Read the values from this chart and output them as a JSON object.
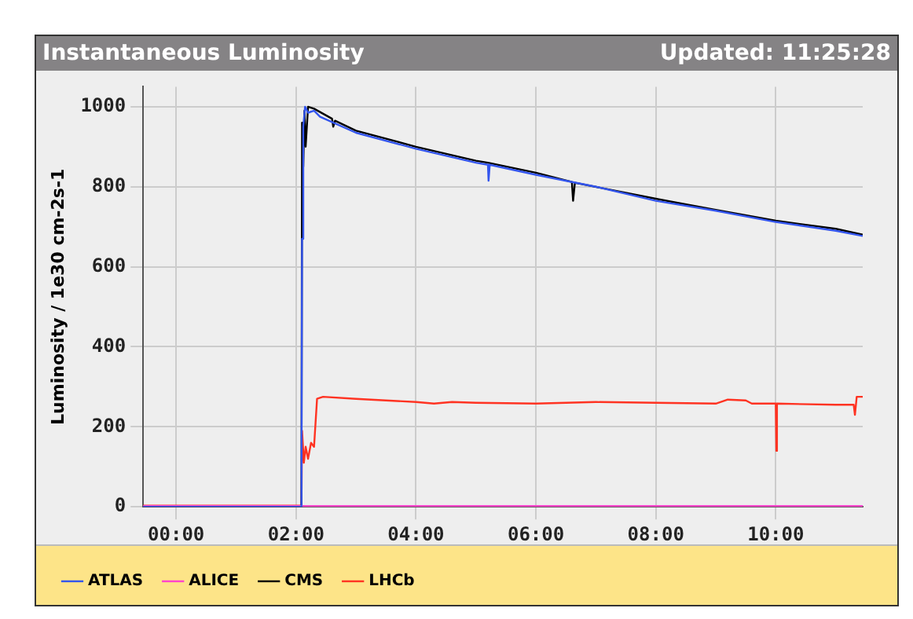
{
  "chart_data": {
    "type": "line",
    "title": "Instantaneous Luminosity",
    "subtitle": "Updated: 11:25:28",
    "ylabel": "Luminosity / 1e30 cm-2s-1",
    "xlim": [
      -0.55,
      11.45
    ],
    "xticks": [
      {
        "value": 0,
        "label": "00:00"
      },
      {
        "value": 2,
        "label": "02:00"
      },
      {
        "value": 4,
        "label": "04:00"
      },
      {
        "value": 6,
        "label": "06:00"
      },
      {
        "value": 8,
        "label": "08:00"
      },
      {
        "value": 10,
        "label": "10:00"
      }
    ],
    "ylim": [
      0,
      1050
    ],
    "yticks": [
      0,
      200,
      400,
      600,
      800,
      1000
    ],
    "grid": true,
    "legend": "bottom",
    "marker": "none",
    "line_style": "solid",
    "series": [
      {
        "name": "ATLAS",
        "color": "#3355ee",
        "x": [
          -0.55,
          2.09,
          2.1,
          2.12,
          2.15,
          2.2,
          2.3,
          2.4,
          3,
          4,
          5,
          5.2,
          5.21,
          5.23,
          6,
          7,
          8,
          9,
          10,
          11,
          11.45
        ],
        "values": [
          0,
          0,
          670,
          950,
          1000,
          985,
          990,
          975,
          935,
          895,
          860,
          855,
          815,
          855,
          830,
          800,
          765,
          740,
          712,
          690,
          677
        ]
      },
      {
        "name": "ALICE",
        "color": "#ff44cc",
        "x": [
          -0.55,
          11.45
        ],
        "values": [
          2,
          2
        ]
      },
      {
        "name": "CMS",
        "color": "#000000",
        "x": [
          -0.55,
          2.09,
          2.1,
          2.12,
          2.14,
          2.16,
          2.2,
          2.3,
          2.6,
          2.62,
          2.65,
          3,
          4,
          5,
          5.2,
          6,
          6.6,
          6.62,
          6.65,
          8,
          9,
          10,
          11,
          11.45
        ],
        "values": [
          0,
          0,
          960,
          850,
          990,
          900,
          1000,
          995,
          970,
          950,
          965,
          940,
          900,
          865,
          860,
          835,
          812,
          765,
          810,
          770,
          742,
          715,
          695,
          680
        ]
      },
      {
        "name": "LHCb",
        "color": "#ff3322",
        "x": [
          -0.55,
          2.09,
          2.1,
          2.13,
          2.16,
          2.2,
          2.25,
          2.3,
          2.35,
          2.45,
          3,
          4,
          4.3,
          4.6,
          5,
          6,
          7,
          8,
          9,
          9.2,
          9.5,
          9.6,
          10,
          10.01,
          10.02,
          11,
          11.3,
          11.32,
          11.35,
          11.45
        ],
        "values": [
          3,
          3,
          190,
          110,
          150,
          120,
          160,
          150,
          270,
          275,
          270,
          262,
          258,
          262,
          260,
          258,
          262,
          260,
          258,
          268,
          266,
          258,
          258,
          140,
          258,
          255,
          255,
          230,
          275,
          275
        ]
      }
    ]
  }
}
